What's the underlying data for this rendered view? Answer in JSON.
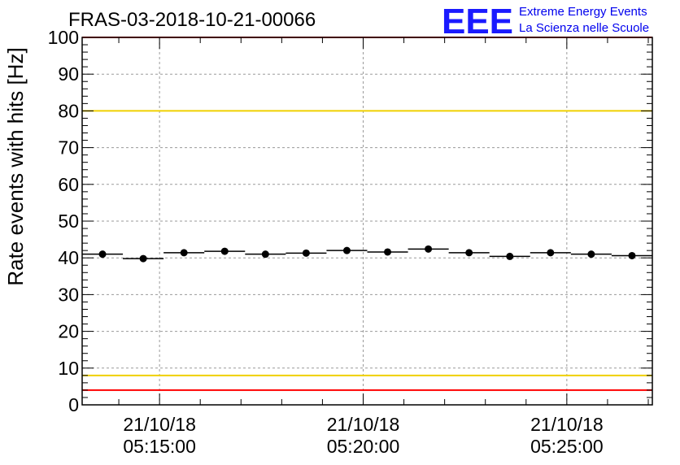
{
  "chart_data": {
    "type": "scatter",
    "title": "FRAS-03-2018-10-21-00066",
    "xlabel": "",
    "ylabel": "Rate events with hits [Hz]",
    "ylim": [
      0,
      100
    ],
    "yticks": [
      "0",
      "10",
      "20",
      "30",
      "40",
      "50",
      "60",
      "70",
      "80",
      "90",
      "100"
    ],
    "xticks": [
      {
        "date": "21/10/18",
        "time": "05:15:00",
        "minute": 15
      },
      {
        "date": "21/10/18",
        "time": "05:20:00",
        "minute": 20
      },
      {
        "date": "21/10/18",
        "time": "05:25:00",
        "minute": 25
      }
    ],
    "x_range_minutes": [
      13.1,
      27.1
    ],
    "bin_width_minutes": 1,
    "series": [
      {
        "name": "rate",
        "x": [
          13.6,
          14.6,
          15.6,
          16.6,
          17.6,
          18.6,
          19.6,
          20.6,
          21.6,
          22.6,
          23.6,
          24.6,
          25.6,
          26.6
        ],
        "values": [
          41.0,
          39.8,
          41.4,
          41.8,
          41.0,
          41.3,
          42.0,
          41.6,
          42.4,
          41.4,
          40.4,
          41.4,
          41.0,
          40.6
        ]
      }
    ],
    "reference_lines": [
      {
        "y": 80,
        "color": "#f0d000"
      },
      {
        "y": 8,
        "color": "#f0d000"
      },
      {
        "y": 100,
        "color": "#ff0000"
      },
      {
        "y": 4,
        "color": "#ff0000"
      }
    ],
    "grid": true
  },
  "logo": {
    "mark": "EEE",
    "line1": "Extreme Energy Events",
    "line2": "La Scienza nelle Scuole"
  }
}
